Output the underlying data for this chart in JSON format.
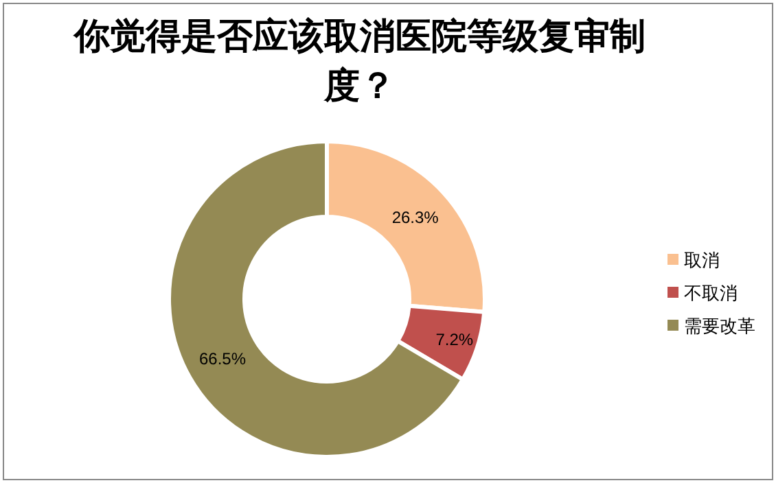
{
  "chart_data": {
    "type": "donut",
    "title": "你觉得是否应该取消医院等级复审制度？",
    "categories": [
      "取消",
      "不取消",
      "需要改革"
    ],
    "values": [
      26.3,
      7.2,
      66.5
    ],
    "colors": [
      "#fac090",
      "#c0504d",
      "#948a54"
    ],
    "value_labels": [
      "26.3%",
      "7.2%",
      "66.5%"
    ],
    "legend": "right"
  }
}
